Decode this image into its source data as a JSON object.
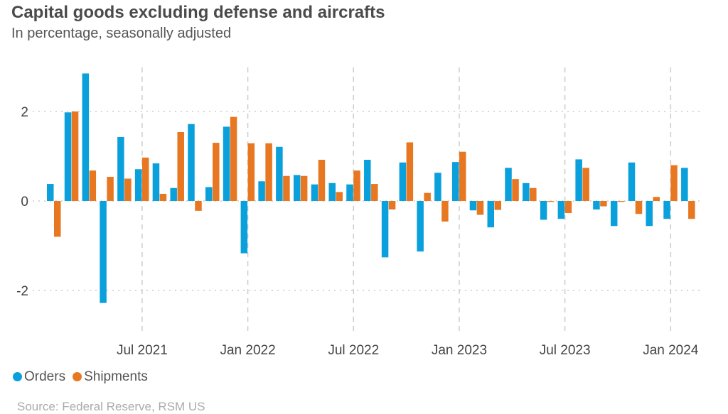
{
  "chart_data": {
    "type": "bar",
    "title": "Capital goods excluding defense and aircrafts",
    "subtitle": "In percentage, seasonally adjusted",
    "source": "Source: Federal Reserve, RSM US",
    "x": [
      "2021-02",
      "2021-03",
      "2021-04",
      "2021-05",
      "2021-06",
      "2021-07",
      "2021-08",
      "2021-09",
      "2021-10",
      "2021-11",
      "2021-12",
      "2022-01",
      "2022-02",
      "2022-03",
      "2022-04",
      "2022-05",
      "2022-06",
      "2022-07",
      "2022-08",
      "2022-09",
      "2022-10",
      "2022-11",
      "2022-12",
      "2023-01",
      "2023-02",
      "2023-03",
      "2023-04",
      "2023-05",
      "2023-06",
      "2023-07",
      "2023-08",
      "2023-09",
      "2023-10",
      "2023-11",
      "2023-12",
      "2024-01",
      "2024-02"
    ],
    "x_ticks": [
      {
        "month": "2021-07",
        "label": "Jul 2021"
      },
      {
        "month": "2022-01",
        "label": "Jan 2022"
      },
      {
        "month": "2022-07",
        "label": "Jul 2022"
      },
      {
        "month": "2023-01",
        "label": "Jan 2023"
      },
      {
        "month": "2023-07",
        "label": "Jul 2023"
      },
      {
        "month": "2024-01",
        "label": "Jan 2024"
      }
    ],
    "y_ticks": [
      2,
      0,
      -2
    ],
    "ylim": [
      -3.3,
      3.0
    ],
    "grid": true,
    "legend_position": "bottom-left",
    "series": [
      {
        "name": "Orders",
        "color": "#0aa0dc",
        "values": [
          0.38,
          1.98,
          2.85,
          -2.28,
          1.43,
          0.71,
          0.84,
          0.29,
          1.72,
          0.31,
          1.66,
          -1.17,
          0.44,
          1.21,
          0.58,
          0.37,
          0.4,
          0.37,
          0.92,
          -1.26,
          0.86,
          -1.13,
          0.63,
          0.87,
          -0.21,
          -0.59,
          0.74,
          0.4,
          -0.42,
          -0.4,
          0.93,
          -0.19,
          -0.56,
          0.86,
          -0.56,
          -0.4,
          0.74
        ]
      },
      {
        "name": "Shipments",
        "color": "#e87722",
        "values": [
          -0.8,
          2.0,
          0.68,
          0.54,
          0.5,
          0.97,
          0.16,
          1.54,
          -0.22,
          1.3,
          1.88,
          1.29,
          1.29,
          0.56,
          0.56,
          0.92,
          0.2,
          0.68,
          0.38,
          -0.19,
          1.31,
          0.18,
          -0.46,
          1.1,
          -0.31,
          -0.2,
          0.49,
          0.29,
          -0.02,
          -0.27,
          0.74,
          -0.12,
          -0.02,
          -0.29,
          0.09,
          0.8,
          -0.4
        ]
      }
    ]
  }
}
